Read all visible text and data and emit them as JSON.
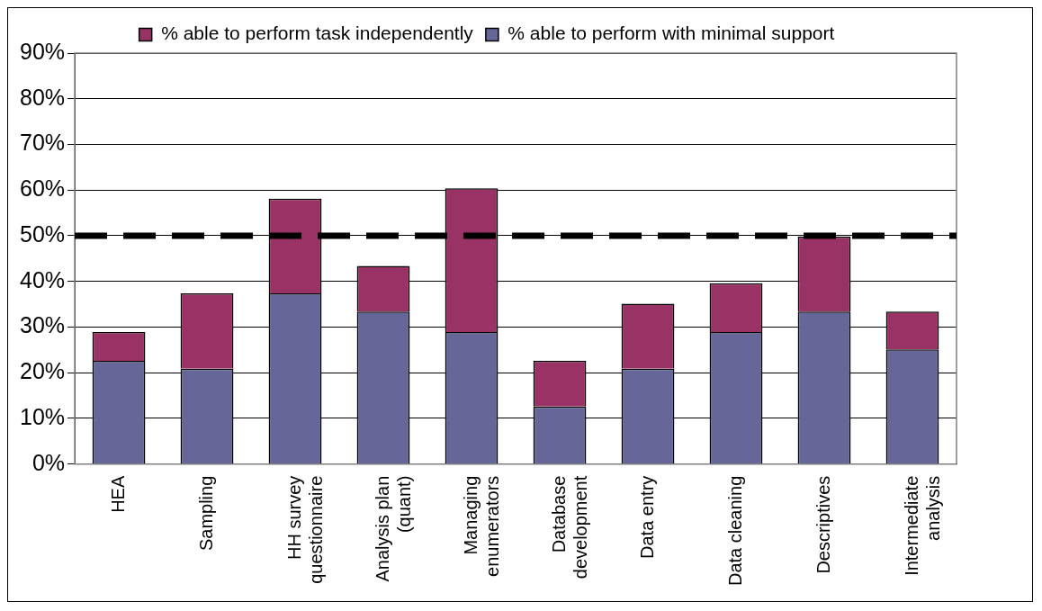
{
  "chart_data": {
    "type": "bar",
    "stacked": true,
    "categories": [
      "HEA",
      "Sampling",
      "HH survey questionnaire",
      "Analysis plan (quant)",
      "Managing enumerators",
      "Database development",
      "Data entry",
      "Data cleaning",
      "Descriptives",
      "Intermediate analysis"
    ],
    "series": [
      {
        "name": "% able to perform with minimal support",
        "color": "#666699",
        "values": [
          22.6,
          20.9,
          37.4,
          33.4,
          28.9,
          12.6,
          20.9,
          28.9,
          33.4,
          25.1
        ]
      },
      {
        "name": "% able to perform task independently",
        "color": "#993366",
        "values": [
          6.3,
          16.5,
          20.7,
          10.0,
          31.5,
          10.0,
          14.2,
          10.7,
          16.4,
          8.3
        ]
      }
    ],
    "ylim": [
      0,
      90
    ],
    "yticks": [
      {
        "value": 0,
        "label": "0%"
      },
      {
        "value": 10,
        "label": "10%"
      },
      {
        "value": 20,
        "label": "20%"
      },
      {
        "value": 30,
        "label": "30%"
      },
      {
        "value": 40,
        "label": "40%"
      },
      {
        "value": 50,
        "label": "50%"
      },
      {
        "value": 60,
        "label": "60%"
      },
      {
        "value": 70,
        "label": "70%"
      },
      {
        "value": 80,
        "label": "80%"
      },
      {
        "value": 90,
        "label": "90%"
      }
    ],
    "grid": "y",
    "legend": "top",
    "ref_lines": [
      {
        "axis": "y",
        "value": 50,
        "color": "#000000",
        "line_style": "dashed"
      }
    ]
  }
}
